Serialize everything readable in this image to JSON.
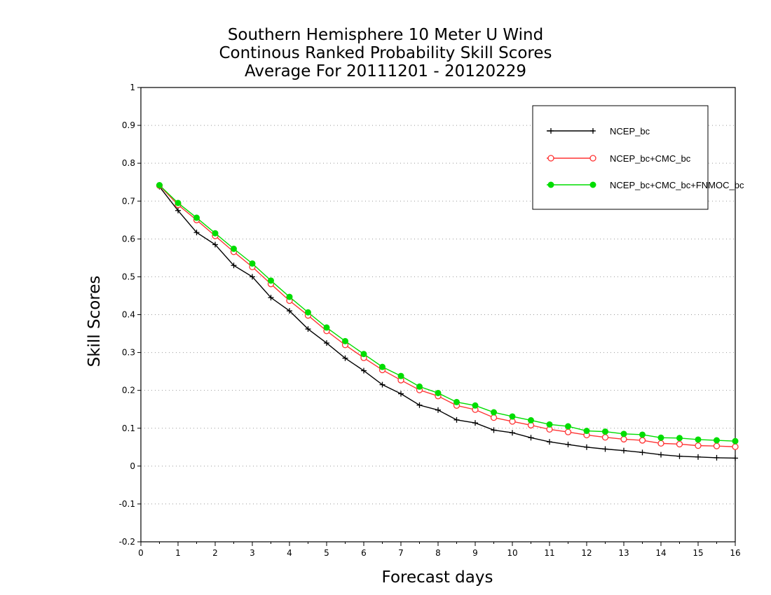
{
  "chart_data": {
    "type": "line",
    "title_lines": [
      "Southern Hemisphere 10 Meter U Wind",
      "Continous Ranked Probability Skill Scores",
      "Average For 20111201 - 20120229"
    ],
    "xlabel": "Forecast days",
    "ylabel": "Skill Scores",
    "xlim": [
      0,
      16
    ],
    "ylim": [
      -0.2,
      1
    ],
    "xticks": [
      "0",
      "1",
      "2",
      "3",
      "4",
      "5",
      "6",
      "7",
      "8",
      "9",
      "10",
      "11",
      "12",
      "13",
      "14",
      "15",
      "16"
    ],
    "yticks": [
      "1",
      "0.9",
      "0.8",
      "0.7",
      "0.6",
      "0.5",
      "0.4",
      "0.3",
      "0.2",
      "0.1",
      "0",
      "-0.1",
      "-0.2"
    ],
    "grid": "horizontal-dotted",
    "legend_position": "top-right",
    "x": [
      0.5,
      1,
      1.5,
      2,
      2.5,
      3,
      3.5,
      4,
      4.5,
      5,
      5.5,
      6,
      6.5,
      7,
      7.5,
      8,
      8.5,
      9,
      9.5,
      10,
      10.5,
      11,
      11.5,
      12,
      12.5,
      13,
      13.5,
      14,
      14.5,
      15,
      15.5,
      16
    ],
    "series": [
      {
        "name": "NCEP_bc",
        "color": "#000000",
        "marker": "plus",
        "values": [
          0.738,
          0.675,
          0.617,
          0.585,
          0.53,
          0.5,
          0.445,
          0.41,
          0.362,
          0.325,
          0.285,
          0.252,
          0.215,
          0.191,
          0.161,
          0.148,
          0.122,
          0.114,
          0.095,
          0.088,
          0.075,
          0.064,
          0.057,
          0.05,
          0.045,
          0.041,
          0.036,
          0.03,
          0.026,
          0.024,
          0.022,
          0.021
        ]
      },
      {
        "name": "NCEP_bc+CMC_bc",
        "color": "#ff3333",
        "marker": "open-circle",
        "values": [
          0.741,
          0.69,
          0.65,
          0.608,
          0.566,
          0.526,
          0.481,
          0.437,
          0.398,
          0.357,
          0.32,
          0.286,
          0.254,
          0.227,
          0.201,
          0.185,
          0.16,
          0.149,
          0.128,
          0.118,
          0.108,
          0.097,
          0.09,
          0.082,
          0.076,
          0.071,
          0.068,
          0.06,
          0.058,
          0.054,
          0.053,
          0.051
        ]
      },
      {
        "name": "NCEP_bc+CMC_bc+FNMOC_bc",
        "color": "#00dd00",
        "marker": "filled-circle",
        "values": [
          0.742,
          0.695,
          0.656,
          0.615,
          0.574,
          0.535,
          0.49,
          0.447,
          0.406,
          0.366,
          0.33,
          0.296,
          0.262,
          0.238,
          0.21,
          0.193,
          0.169,
          0.16,
          0.142,
          0.131,
          0.121,
          0.11,
          0.105,
          0.093,
          0.091,
          0.085,
          0.083,
          0.075,
          0.074,
          0.07,
          0.068,
          0.066
        ]
      }
    ]
  }
}
